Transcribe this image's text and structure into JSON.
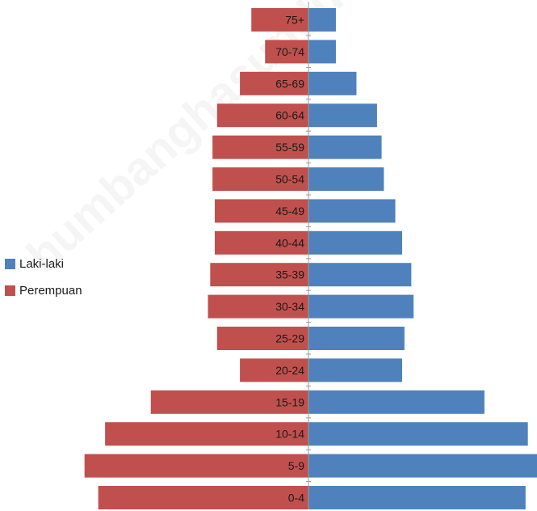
{
  "watermark": "humbanghasundutankab.bps.go.id",
  "chart_data": {
    "type": "bar",
    "orientation": "horizontal",
    "subtype": "population-pyramid",
    "categories": [
      "0-4",
      "5-9",
      "10-14",
      "15-19",
      "20-24",
      "25-29",
      "30-34",
      "35-39",
      "40-44",
      "45-49",
      "50-54",
      "55-59",
      "60-64",
      "65-69",
      "70-74",
      "75+"
    ],
    "series": [
      {
        "name": "Laki-laki",
        "color": "#4f81bd",
        "values": [
          95,
          100,
          96,
          77,
          41,
          42,
          46,
          45,
          41,
          38,
          33,
          32,
          30,
          21,
          12,
          12
        ]
      },
      {
        "name": "Perempuan",
        "color": "#c0504d",
        "values": [
          92,
          98,
          89,
          69,
          30,
          40,
          44,
          43,
          41,
          41,
          42,
          42,
          40,
          30,
          19,
          25
        ]
      }
    ],
    "legend_position": "left",
    "grid": false
  }
}
